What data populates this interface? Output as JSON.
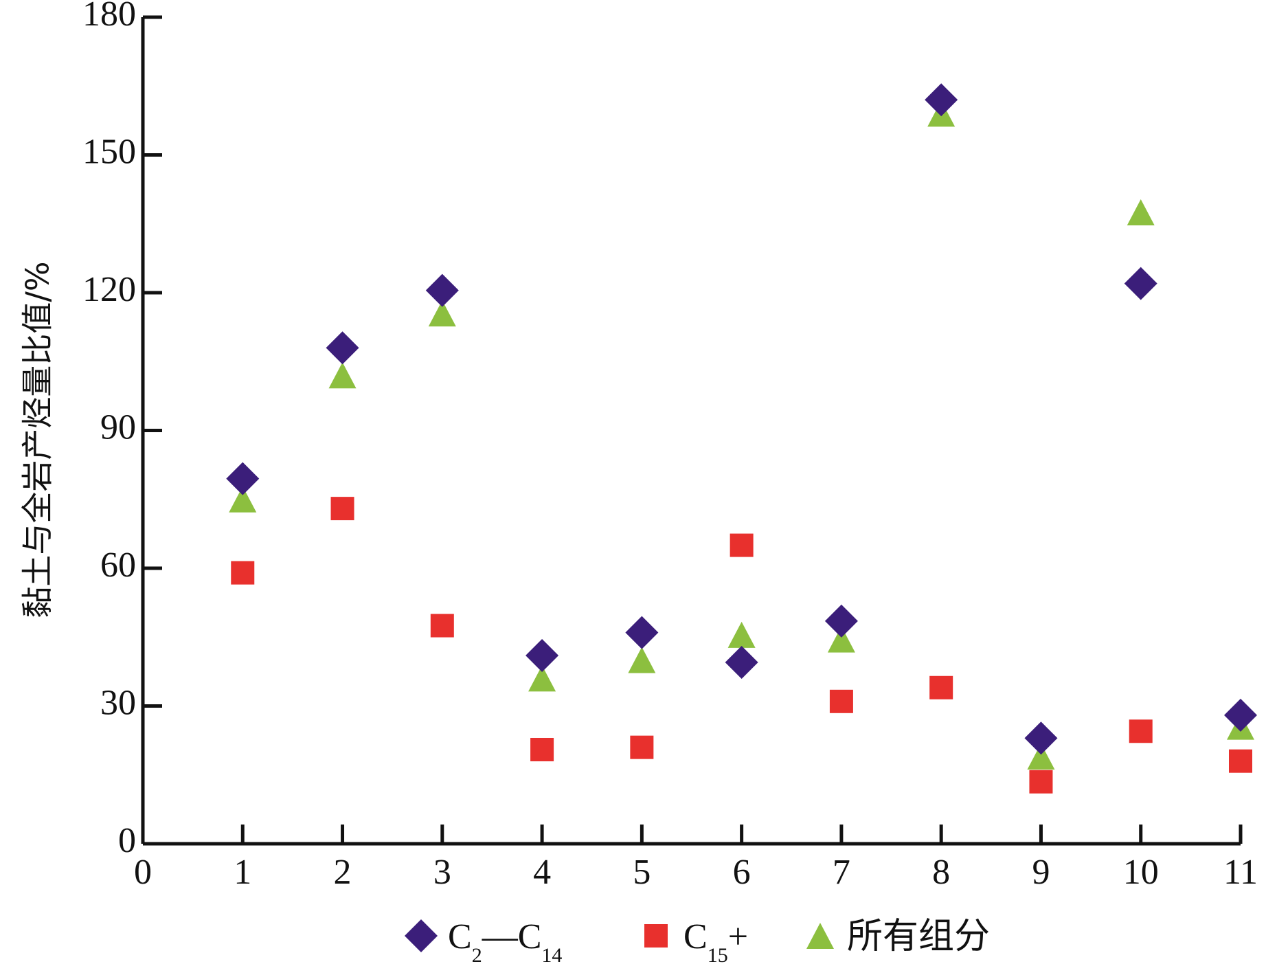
{
  "chart_data": {
    "type": "scatter",
    "title": "",
    "xlabel": "",
    "ylabel": "黏土与全岩产烃量比值/%",
    "xlim": [
      0,
      11
    ],
    "ylim": [
      0,
      180
    ],
    "xticks": [
      0,
      1,
      2,
      3,
      4,
      5,
      6,
      7,
      8,
      9,
      10,
      11
    ],
    "yticks": [
      0,
      30,
      60,
      90,
      120,
      150,
      180
    ],
    "grid": false,
    "legend_position": "bottom",
    "series": [
      {
        "name": "C2—C14",
        "label_parts": [
          "C",
          "2",
          "—C",
          "14"
        ],
        "marker": "diamond",
        "color": "#3B1E7A",
        "x": [
          1,
          2,
          3,
          4,
          5,
          6,
          7,
          8,
          9,
          10,
          11
        ],
        "y": [
          79.5,
          108,
          120.5,
          41,
          46,
          39.5,
          48.5,
          162,
          23,
          122,
          28
        ]
      },
      {
        "name": "C15+",
        "label_parts": [
          "C",
          "15",
          "+"
        ],
        "marker": "square",
        "color": "#E8302D",
        "x": [
          1,
          2,
          3,
          4,
          5,
          6,
          7,
          8,
          9,
          10,
          11
        ],
        "y": [
          59,
          73,
          47.5,
          20.5,
          21,
          65,
          31,
          34,
          13.5,
          24.5,
          18
        ]
      },
      {
        "name": "所有组分",
        "label_parts": [
          "所有组分"
        ],
        "marker": "triangle",
        "color": "#8CBF3F",
        "x": [
          1,
          2,
          3,
          4,
          5,
          6,
          7,
          8,
          9,
          10,
          11
        ],
        "y": [
          75,
          102,
          115.5,
          36,
          40,
          45.5,
          44.5,
          159,
          19,
          137.5,
          25.5
        ]
      }
    ]
  }
}
